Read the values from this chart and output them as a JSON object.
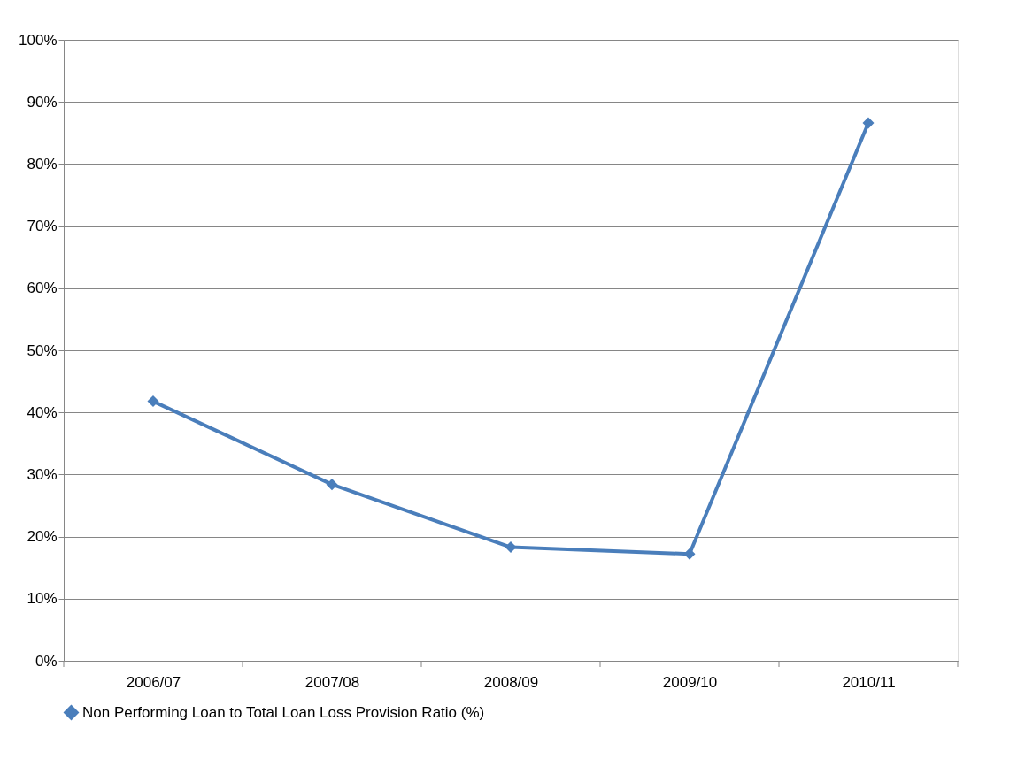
{
  "chart_data": {
    "type": "line",
    "categories": [
      "2006/07",
      "2007/08",
      "2008/09",
      "2009/10",
      "2010/11"
    ],
    "series": [
      {
        "name": "Non Performing Loan to Total Loan Loss Provision Ratio (%)",
        "color": "#4a7ebb",
        "values": [
          41.8,
          28.4,
          18.3,
          17.2,
          86.6
        ]
      }
    ],
    "ylim": [
      0,
      100
    ],
    "yticks": [
      {
        "value": 0,
        "label": "0%"
      },
      {
        "value": 10,
        "label": "10%"
      },
      {
        "value": 20,
        "label": "20%"
      },
      {
        "value": 30,
        "label": "30%"
      },
      {
        "value": 40,
        "label": "40%"
      },
      {
        "value": 50,
        "label": "50%"
      },
      {
        "value": 60,
        "label": "60%"
      },
      {
        "value": 70,
        "label": "70%"
      },
      {
        "value": 80,
        "label": "80%"
      },
      {
        "value": 90,
        "label": "90%"
      },
      {
        "value": 100,
        "label": "100%"
      }
    ],
    "grid": "y",
    "legend": "bottom",
    "marker": "diamond",
    "line_style": "solid"
  }
}
